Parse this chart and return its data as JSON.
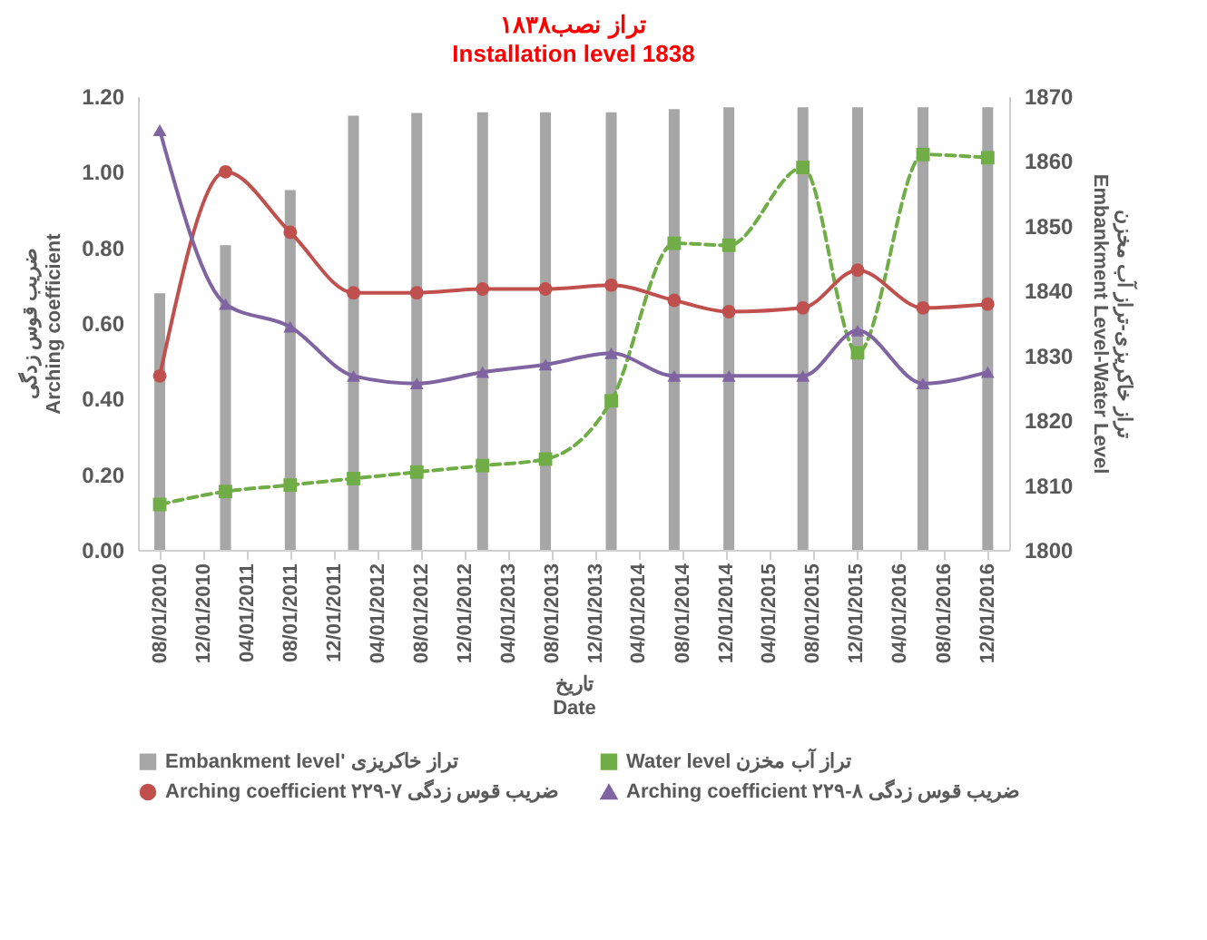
{
  "chart_data": {
    "type": "line",
    "title": "تراز نصب۱۸۳۸",
    "subtitle": "Installation level 1838",
    "xlabel": "تاریخ\nDate",
    "ylabel": "ضریب قوس زدگی\nArching coefficient",
    "y2label": "تراز خاکریزی-تراز آب مخزن\nEmbankment Level-Water Level",
    "x": [
      "2010-08-01",
      "2011-02-01",
      "2011-08-01",
      "2012-01-25",
      "2012-07-20",
      "2013-01-20",
      "2013-07-15",
      "2014-01-15",
      "2014-07-10",
      "2014-12-10",
      "2015-07-05",
      "2015-12-05",
      "2016-06-05",
      "2016-12-03"
    ],
    "series": [
      {
        "name": "Embankment level' تراز خاکریزی",
        "type": "bar",
        "axis": "y2",
        "color": "#a6a6a6",
        "values": [
          1839.6,
          1847,
          1855.5,
          1867,
          1867.4,
          1867.5,
          1867.5,
          1867.5,
          1868,
          1868.3,
          1868.3,
          1868.3,
          1868.3,
          1868.3
        ]
      },
      {
        "name": "Water level تراز آب مخزن",
        "axis": "y2",
        "color": "#70ad47",
        "marker": "square",
        "line_style": "dashed",
        "values": [
          1807,
          1809,
          1810,
          1811,
          1812,
          1813,
          1814,
          1823,
          1847.3,
          1847,
          1859,
          1830.4,
          1861,
          1860.5
        ]
      },
      {
        "name": "Arching coefficient ۲۲۹-۷ ضریب قوس زدگی",
        "color": "#c0504d",
        "marker": "circle",
        "line_style": "solid",
        "values": [
          0.46,
          1.0,
          0.84,
          0.68,
          0.68,
          0.69,
          0.69,
          0.7,
          0.66,
          0.63,
          0.64,
          0.74,
          0.64,
          0.65
        ]
      },
      {
        "name": "Arching coefficient ۲۲۹-۸ ضریب قوس زدگی",
        "color": "#8064a2",
        "marker": "triangle",
        "line_style": "solid",
        "values": [
          1.11,
          0.65,
          0.59,
          0.46,
          0.44,
          0.47,
          0.49,
          0.52,
          0.46,
          0.46,
          0.46,
          0.58,
          0.44,
          0.47
        ]
      }
    ],
    "xlim": [
      "2010-06-01",
      "2017-02-01"
    ],
    "xticks": [
      {
        "value": "2010-08-01",
        "label": "08/01/2010"
      },
      {
        "value": "2010-12-01",
        "label": "12/01/2010"
      },
      {
        "value": "2011-04-01",
        "label": "04/01/2011"
      },
      {
        "value": "2011-08-01",
        "label": "08/01/2011"
      },
      {
        "value": "2011-12-01",
        "label": "12/01/2011"
      },
      {
        "value": "2012-04-01",
        "label": "04/01/2012"
      },
      {
        "value": "2012-08-01",
        "label": "08/01/2012"
      },
      {
        "value": "2012-12-01",
        "label": "12/01/2012"
      },
      {
        "value": "2013-04-01",
        "label": "04/01/2013"
      },
      {
        "value": "2013-08-01",
        "label": "08/01/2013"
      },
      {
        "value": "2013-12-01",
        "label": "12/01/2013"
      },
      {
        "value": "2014-04-01",
        "label": "04/01/2014"
      },
      {
        "value": "2014-08-01",
        "label": "08/01/2014"
      },
      {
        "value": "2014-12-01",
        "label": "12/01/2014"
      },
      {
        "value": "2015-04-01",
        "label": "04/01/2015"
      },
      {
        "value": "2015-08-01",
        "label": "08/01/2015"
      },
      {
        "value": "2015-12-01",
        "label": "12/01/2015"
      },
      {
        "value": "2016-04-01",
        "label": "04/01/2016"
      },
      {
        "value": "2016-08-01",
        "label": "08/01/2016"
      },
      {
        "value": "2016-12-01",
        "label": "12/01/2016"
      }
    ],
    "ylim": [
      0,
      1.2
    ],
    "yticks": [
      {
        "value": 0,
        "label": "0.00"
      },
      {
        "value": 0.2,
        "label": "0.20"
      },
      {
        "value": 0.4,
        "label": "0.40"
      },
      {
        "value": 0.6,
        "label": "0.60"
      },
      {
        "value": 0.8,
        "label": "0.80"
      },
      {
        "value": 1,
        "label": "1.00"
      },
      {
        "value": 1.2,
        "label": "1.20"
      }
    ],
    "y2lim": [
      1800,
      1870
    ],
    "y2ticks": [
      1800,
      1810,
      1820,
      1830,
      1840,
      1850,
      1860,
      1870
    ],
    "grid": false,
    "legend": "bottom"
  }
}
